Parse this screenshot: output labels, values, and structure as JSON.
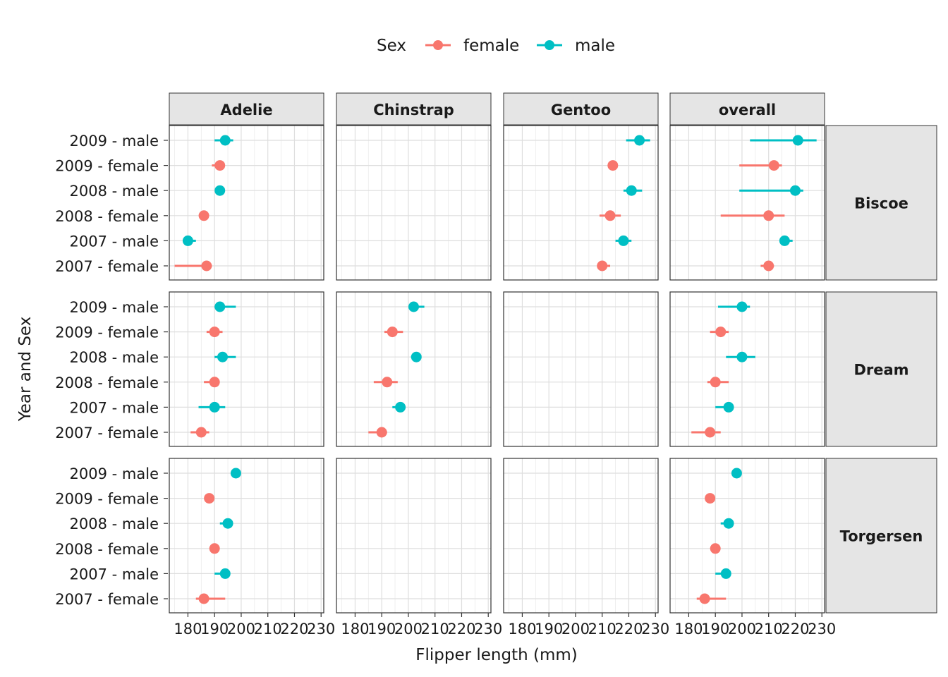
{
  "chart_data": {
    "type": "faceted-pointrange",
    "xlabel": "Flipper length (mm)",
    "ylabel": "Year and Sex",
    "xlim": [
      173,
      231
    ],
    "x_ticks": [
      180,
      190,
      200,
      210,
      220,
      230
    ],
    "legend": {
      "title": "Sex",
      "position": "top",
      "entries": [
        {
          "label": "female",
          "color": "#F8766D"
        },
        {
          "label": "male",
          "color": "#00BFC4"
        }
      ]
    },
    "grid": true,
    "columns": [
      "Adelie",
      "Chinstrap",
      "Gentoo",
      "overall"
    ],
    "rows": [
      "Biscoe",
      "Dream",
      "Torgersen"
    ],
    "y_categories": [
      "2009 - male",
      "2009 - female",
      "2008 - male",
      "2008 - female",
      "2007 - male",
      "2007 - female"
    ],
    "panels": [
      {
        "row": "Biscoe",
        "column": "Adelie",
        "points": [
          {
            "y": "2009 - male",
            "sex": "male",
            "value": 194,
            "low": 190,
            "high": 197
          },
          {
            "y": "2009 - female",
            "sex": "female",
            "value": 192,
            "low": 189,
            "high": 193
          },
          {
            "y": "2008 - male",
            "sex": "male",
            "value": 192,
            "low": 191,
            "high": 193
          },
          {
            "y": "2008 - female",
            "sex": "female",
            "value": 186,
            "low": 185,
            "high": 187
          },
          {
            "y": "2007 - male",
            "sex": "male",
            "value": 180,
            "low": 179,
            "high": 183
          },
          {
            "y": "2007 - female",
            "sex": "female",
            "value": 187,
            "low": 175,
            "high": 189
          }
        ]
      },
      {
        "row": "Biscoe",
        "column": "Chinstrap",
        "points": []
      },
      {
        "row": "Biscoe",
        "column": "Gentoo",
        "points": [
          {
            "y": "2009 - male",
            "sex": "male",
            "value": 224,
            "low": 219,
            "high": 228
          },
          {
            "y": "2009 - female",
            "sex": "female",
            "value": 214,
            "low": 213,
            "high": 215
          },
          {
            "y": "2008 - male",
            "sex": "male",
            "value": 221,
            "low": 218,
            "high": 225
          },
          {
            "y": "2008 - female",
            "sex": "female",
            "value": 213,
            "low": 209,
            "high": 217
          },
          {
            "y": "2007 - male",
            "sex": "male",
            "value": 218,
            "low": 215,
            "high": 221
          },
          {
            "y": "2007 - female",
            "sex": "female",
            "value": 210,
            "low": 209,
            "high": 213
          }
        ]
      },
      {
        "row": "Biscoe",
        "column": "overall",
        "points": [
          {
            "y": "2009 - male",
            "sex": "male",
            "value": 221,
            "low": 203,
            "high": 228
          },
          {
            "y": "2009 - female",
            "sex": "female",
            "value": 212,
            "low": 199,
            "high": 215
          },
          {
            "y": "2008 - male",
            "sex": "male",
            "value": 220,
            "low": 199,
            "high": 223
          },
          {
            "y": "2008 - female",
            "sex": "female",
            "value": 210,
            "low": 192,
            "high": 216
          },
          {
            "y": "2007 - male",
            "sex": "male",
            "value": 216,
            "low": 215,
            "high": 219
          },
          {
            "y": "2007 - female",
            "sex": "female",
            "value": 210,
            "low": 207,
            "high": 212
          }
        ]
      },
      {
        "row": "Dream",
        "column": "Adelie",
        "points": [
          {
            "y": "2009 - male",
            "sex": "male",
            "value": 192,
            "low": 190,
            "high": 198
          },
          {
            "y": "2009 - female",
            "sex": "female",
            "value": 190,
            "low": 187,
            "high": 193
          },
          {
            "y": "2008 - male",
            "sex": "male",
            "value": 193,
            "low": 190,
            "high": 198
          },
          {
            "y": "2008 - female",
            "sex": "female",
            "value": 190,
            "low": 186,
            "high": 191
          },
          {
            "y": "2007 - male",
            "sex": "male",
            "value": 190,
            "low": 184,
            "high": 194
          },
          {
            "y": "2007 - female",
            "sex": "female",
            "value": 185,
            "low": 181,
            "high": 188
          }
        ]
      },
      {
        "row": "Dream",
        "column": "Chinstrap",
        "points": [
          {
            "y": "2009 - male",
            "sex": "male",
            "value": 202,
            "low": 201,
            "high": 206
          },
          {
            "y": "2009 - female",
            "sex": "female",
            "value": 194,
            "low": 191,
            "high": 198
          },
          {
            "y": "2008 - male",
            "sex": "male",
            "value": 203,
            "low": 201,
            "high": 204
          },
          {
            "y": "2008 - female",
            "sex": "female",
            "value": 192,
            "low": 187,
            "high": 196
          },
          {
            "y": "2007 - male",
            "sex": "male",
            "value": 197,
            "low": 194,
            "high": 198
          },
          {
            "y": "2007 - female",
            "sex": "female",
            "value": 190,
            "low": 185,
            "high": 192
          }
        ]
      },
      {
        "row": "Dream",
        "column": "Gentoo",
        "points": []
      },
      {
        "row": "Dream",
        "column": "overall",
        "points": [
          {
            "y": "2009 - male",
            "sex": "male",
            "value": 200,
            "low": 191,
            "high": 203
          },
          {
            "y": "2009 - female",
            "sex": "female",
            "value": 192,
            "low": 188,
            "high": 195
          },
          {
            "y": "2008 - male",
            "sex": "male",
            "value": 200,
            "low": 194,
            "high": 205
          },
          {
            "y": "2008 - female",
            "sex": "female",
            "value": 190,
            "low": 187,
            "high": 195
          },
          {
            "y": "2007 - male",
            "sex": "male",
            "value": 195,
            "low": 190,
            "high": 196
          },
          {
            "y": "2007 - female",
            "sex": "female",
            "value": 188,
            "low": 181,
            "high": 192
          }
        ]
      },
      {
        "row": "Torgersen",
        "column": "Adelie",
        "points": [
          {
            "y": "2009 - male",
            "sex": "male",
            "value": 198,
            "low": 197,
            "high": 199
          },
          {
            "y": "2009 - female",
            "sex": "female",
            "value": 188,
            "low": 187,
            "high": 189
          },
          {
            "y": "2008 - male",
            "sex": "male",
            "value": 195,
            "low": 192,
            "high": 196
          },
          {
            "y": "2008 - female",
            "sex": "female",
            "value": 190,
            "low": 189,
            "high": 191
          },
          {
            "y": "2007 - male",
            "sex": "male",
            "value": 194,
            "low": 190,
            "high": 195
          },
          {
            "y": "2007 - female",
            "sex": "female",
            "value": 186,
            "low": 183,
            "high": 194
          }
        ]
      },
      {
        "row": "Torgersen",
        "column": "Chinstrap",
        "points": []
      },
      {
        "row": "Torgersen",
        "column": "Gentoo",
        "points": []
      },
      {
        "row": "Torgersen",
        "column": "overall",
        "points": [
          {
            "y": "2009 - male",
            "sex": "male",
            "value": 198,
            "low": 197,
            "high": 199
          },
          {
            "y": "2009 - female",
            "sex": "female",
            "value": 188,
            "low": 187,
            "high": 189
          },
          {
            "y": "2008 - male",
            "sex": "male",
            "value": 195,
            "low": 192,
            "high": 196
          },
          {
            "y": "2008 - female",
            "sex": "female",
            "value": 190,
            "low": 189,
            "high": 191
          },
          {
            "y": "2007 - male",
            "sex": "male",
            "value": 194,
            "low": 190,
            "high": 195
          },
          {
            "y": "2007 - female",
            "sex": "female",
            "value": 186,
            "low": 183,
            "high": 194
          }
        ]
      }
    ]
  }
}
